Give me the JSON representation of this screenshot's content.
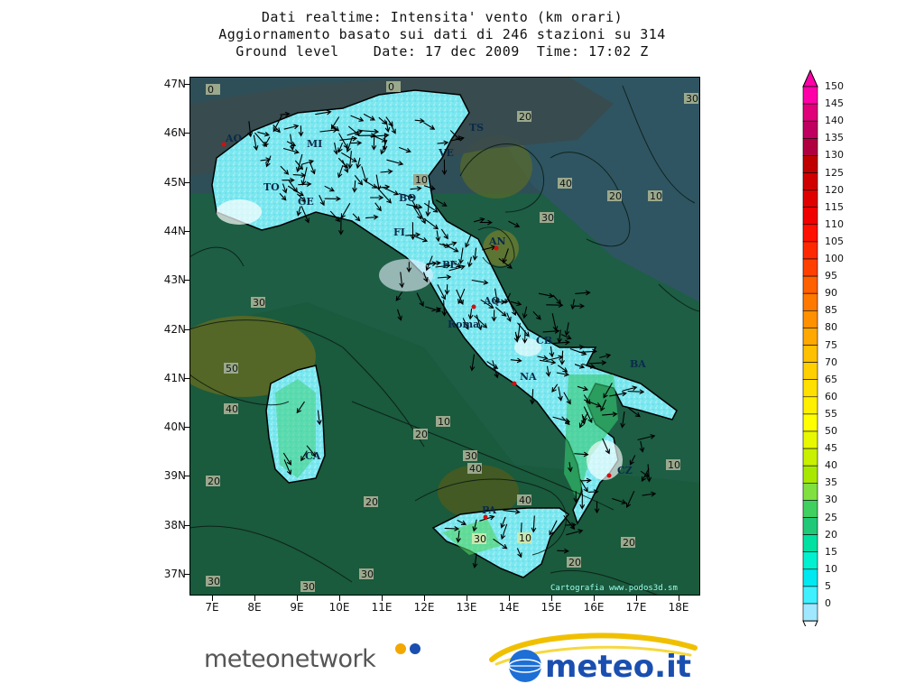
{
  "title": {
    "line1": "Dati realtime: Intensita' vento (km orari)",
    "line2": "Aggiornamento basato sui dati di 246 stazioni su 314",
    "line3": "Ground level    Date: 17 dec 2009  Time: 17:02 Z"
  },
  "axes": {
    "latitudes": [
      "47N",
      "46N",
      "45N",
      "44N",
      "43N",
      "42N",
      "41N",
      "40N",
      "39N",
      "38N",
      "37N"
    ],
    "longitudes": [
      "7E",
      "8E",
      "9E",
      "10E",
      "11E",
      "12E",
      "13E",
      "14E",
      "15E",
      "16E",
      "17E",
      "18E"
    ]
  },
  "legend": {
    "labels": [
      "150",
      "145",
      "140",
      "135",
      "130",
      "125",
      "120",
      "115",
      "110",
      "105",
      "100",
      "95",
      "90",
      "85",
      "80",
      "75",
      "70",
      "65",
      "60",
      "55",
      "50",
      "45",
      "40",
      "35",
      "30",
      "25",
      "20",
      "15",
      "10",
      "5",
      "0"
    ],
    "colors": [
      "#ff00a8",
      "#e0007a",
      "#c00060",
      "#b00040",
      "#c00000",
      "#d00000",
      "#e00000",
      "#f00000",
      "#ff1000",
      "#ff2800",
      "#ff4000",
      "#ff6000",
      "#ff7800",
      "#ff9000",
      "#ffa800",
      "#ffc000",
      "#ffd000",
      "#ffe000",
      "#fff000",
      "#ffff00",
      "#e8f800",
      "#c8f000",
      "#a8e800",
      "#80e040",
      "#40d060",
      "#20c878",
      "#00e0a0",
      "#00f0d0",
      "#00e8f0",
      "#40f0ff",
      "#a0e8ff"
    ]
  },
  "city_labels": [
    "AO",
    "TO",
    "GE",
    "MI",
    "VE",
    "BO",
    "FI",
    "AN",
    "PE",
    "AQ",
    "Roma",
    "CB",
    "NA",
    "BA",
    "CZ",
    "CA",
    "PA",
    "TS"
  ],
  "contour_labels": [
    "0",
    "0",
    "10",
    "20",
    "30",
    "40",
    "50"
  ],
  "credit": "Cartografia www.podos3d.sm",
  "logos": {
    "meteonetwork": "meteonetwork",
    "meteoit": "meteo.it"
  }
}
